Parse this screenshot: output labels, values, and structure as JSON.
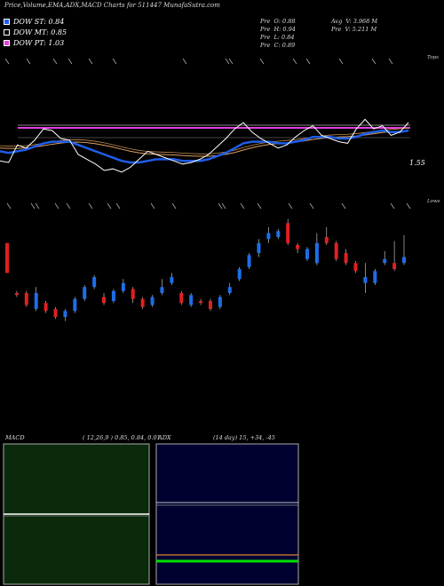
{
  "title": "Price,Volume,EMA,ADX,MACD Charts for 511447 MunafaSutra.com",
  "legend": [
    {
      "label": "DOW ST: 0.84",
      "color": "#1e5ee8"
    },
    {
      "label": "DOW MT: 0.85",
      "color": "#000000"
    },
    {
      "label": "DOW PT: 1.03",
      "color": "#e040e0"
    }
  ],
  "stats_left": [
    {
      "k": "Pre",
      "v": "O: 0.88"
    },
    {
      "k": "Pre",
      "v": "H: 0.94"
    },
    {
      "k": "Pre",
      "v": "L: 0.84"
    },
    {
      "k": "Pre",
      "v": "C: 0.89"
    }
  ],
  "stats_right": [
    {
      "k": "Avg",
      "v": "V: 3.968  M"
    },
    {
      "k": "Pre",
      "v": "V: 5.211 M"
    }
  ],
  "price_label": "1.55",
  "tops_label": "Tops",
  "lows_label": "Lows",
  "macd": {
    "name": "MACD",
    "params": "( 12,26,9 ) 0.85, 0.84, 0.01"
  },
  "adx": {
    "name": "ADX",
    "params": "(14  day) 15, +34, -45"
  },
  "colors": {
    "price_line": "#ffffff",
    "ema_short": "#1e5ee8",
    "ema_mid": "#d9a060",
    "pt_line": "#e040e0",
    "up": "#1e6ee8",
    "down": "#e02020",
    "macd_bg": "#0b2a0b",
    "adx_bg": "#000030"
  },
  "chart_data": {
    "type": "line",
    "series": [
      {
        "values": [
          0.86,
          0.85,
          0.96,
          0.94,
          0.99,
          1.06,
          1.05,
          1.0,
          0.99,
          0.9,
          0.87,
          0.84,
          0.8,
          0.81,
          0.79,
          0.82,
          0.87,
          0.92,
          0.9,
          0.88,
          0.86,
          0.84,
          0.85,
          0.87,
          0.9,
          0.95,
          1.0,
          1.06,
          1.1,
          1.04,
          1.0,
          0.97,
          0.94,
          0.96,
          1.01,
          1.05,
          1.08,
          1.02,
          1.0,
          0.98,
          0.97,
          1.06,
          1.12,
          1.06,
          1.08,
          1.02,
          1.04,
          1.1
        ]
      },
      {
        "values": [
          0.92,
          0.91,
          0.92,
          0.93,
          0.95,
          0.97,
          0.98,
          0.98,
          0.98,
          0.96,
          0.94,
          0.92,
          0.9,
          0.88,
          0.86,
          0.85,
          0.85,
          0.86,
          0.87,
          0.87,
          0.87,
          0.86,
          0.86,
          0.86,
          0.87,
          0.89,
          0.91,
          0.94,
          0.97,
          0.98,
          0.98,
          0.98,
          0.97,
          0.97,
          0.98,
          0.99,
          1.01,
          1.01,
          1.01,
          1.0,
          1.0,
          1.01,
          1.03,
          1.04,
          1.05,
          1.04,
          1.04,
          1.05
        ]
      }
    ],
    "candles": [
      {
        "o": 1.3,
        "c": 1.15,
        "h": 1.3,
        "l": 1.15
      },
      {
        "o": 1.05,
        "c": 1.04,
        "h": 1.06,
        "l": 1.03
      },
      {
        "o": 1.05,
        "c": 0.99,
        "h": 1.06,
        "l": 0.98
      },
      {
        "o": 0.97,
        "c": 1.05,
        "h": 1.08,
        "l": 0.96
      },
      {
        "o": 1.0,
        "c": 0.96,
        "h": 1.01,
        "l": 0.95
      },
      {
        "o": 0.97,
        "c": 0.93,
        "h": 0.98,
        "l": 0.92
      },
      {
        "o": 0.93,
        "c": 0.96,
        "h": 0.97,
        "l": 0.91
      },
      {
        "o": 0.96,
        "c": 1.02,
        "h": 1.03,
        "l": 0.95
      },
      {
        "o": 1.02,
        "c": 1.08,
        "h": 1.09,
        "l": 1.01
      },
      {
        "o": 1.08,
        "c": 1.13,
        "h": 1.14,
        "l": 1.07
      },
      {
        "o": 1.03,
        "c": 1.0,
        "h": 1.05,
        "l": 0.99
      },
      {
        "o": 1.01,
        "c": 1.06,
        "h": 1.07,
        "l": 1.0
      },
      {
        "o": 1.06,
        "c": 1.1,
        "h": 1.12,
        "l": 1.05
      },
      {
        "o": 1.07,
        "c": 1.02,
        "h": 1.08,
        "l": 1.0
      },
      {
        "o": 1.02,
        "c": 0.98,
        "h": 1.03,
        "l": 0.97
      },
      {
        "o": 0.99,
        "c": 1.03,
        "h": 1.04,
        "l": 0.98
      },
      {
        "o": 1.05,
        "c": 1.08,
        "h": 1.12,
        "l": 1.04
      },
      {
        "o": 1.1,
        "c": 1.13,
        "h": 1.15,
        "l": 1.09
      },
      {
        "o": 1.05,
        "c": 1.0,
        "h": 1.06,
        "l": 0.99
      },
      {
        "o": 0.99,
        "c": 1.04,
        "h": 1.05,
        "l": 0.98
      },
      {
        "o": 1.01,
        "c": 1.0,
        "h": 1.02,
        "l": 0.99
      },
      {
        "o": 1.01,
        "c": 0.97,
        "h": 1.02,
        "l": 0.96
      },
      {
        "o": 0.98,
        "c": 1.03,
        "h": 1.04,
        "l": 0.97
      },
      {
        "o": 1.05,
        "c": 1.08,
        "h": 1.1,
        "l": 1.04
      },
      {
        "o": 1.12,
        "c": 1.17,
        "h": 1.18,
        "l": 1.11
      },
      {
        "o": 1.18,
        "c": 1.24,
        "h": 1.25,
        "l": 1.17
      },
      {
        "o": 1.25,
        "c": 1.3,
        "h": 1.32,
        "l": 1.23
      },
      {
        "o": 1.32,
        "c": 1.35,
        "h": 1.38,
        "l": 1.3
      },
      {
        "o": 1.33,
        "c": 1.36,
        "h": 1.37,
        "l": 1.32
      },
      {
        "o": 1.4,
        "c": 1.3,
        "h": 1.42,
        "l": 1.29
      },
      {
        "o": 1.29,
        "c": 1.27,
        "h": 1.3,
        "l": 1.25
      },
      {
        "o": 1.22,
        "c": 1.27,
        "h": 1.28,
        "l": 1.21
      },
      {
        "o": 1.2,
        "c": 1.3,
        "h": 1.35,
        "l": 1.19
      },
      {
        "o": 1.33,
        "c": 1.3,
        "h": 1.38,
        "l": 1.29
      },
      {
        "o": 1.3,
        "c": 1.22,
        "h": 1.31,
        "l": 1.21
      },
      {
        "o": 1.25,
        "c": 1.2,
        "h": 1.27,
        "l": 1.19
      },
      {
        "o": 1.2,
        "c": 1.16,
        "h": 1.21,
        "l": 1.15
      },
      {
        "o": 1.1,
        "c": 1.13,
        "h": 1.2,
        "l": 1.05
      },
      {
        "o": 1.1,
        "c": 1.16,
        "h": 1.17,
        "l": 1.09
      },
      {
        "o": 1.2,
        "c": 1.22,
        "h": 1.26,
        "l": 1.19
      },
      {
        "o": 1.2,
        "c": 1.17,
        "h": 1.31,
        "l": 1.16
      },
      {
        "o": 1.2,
        "c": 1.23,
        "h": 1.34,
        "l": 1.19
      }
    ]
  }
}
